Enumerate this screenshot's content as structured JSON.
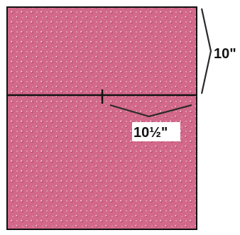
{
  "diagram": {
    "fabric_color": "#d2688a",
    "fabric_dot_color": "#f6cfdc",
    "fabric_shadow_color": "#b34a6d",
    "outline_color": "#111111",
    "height_label": "10\"",
    "width_label": "10½\"",
    "bracket_color": "#2a2a2a"
  }
}
